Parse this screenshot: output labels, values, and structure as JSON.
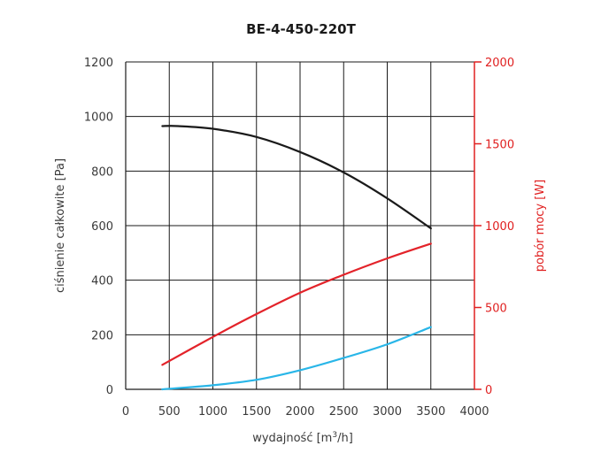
{
  "chart_data": {
    "type": "line",
    "title": "BE-4-450-220T",
    "xlabel": {
      "prefix": "wydajność [m",
      "sup": "3",
      "suffix": "/h]"
    },
    "ylabel": "ciśnienie całkowite [Pa]",
    "y2label": "pobór mocy [W]",
    "xlim": [
      0,
      4000
    ],
    "ylim": [
      0,
      1200
    ],
    "y2lim": [
      0,
      2000
    ],
    "xticks": [
      "0",
      "500",
      "1000",
      "1500",
      "2000",
      "2500",
      "3000",
      "3500",
      "4000"
    ],
    "xtick_values": [
      0,
      500,
      1000,
      1500,
      2000,
      2500,
      3000,
      3500,
      4000
    ],
    "yticks": [
      "0",
      "200",
      "400",
      "600",
      "800",
      "1000",
      "1200"
    ],
    "ytick_values": [
      0,
      200,
      400,
      600,
      800,
      1000,
      1200
    ],
    "y2ticks": [
      "0",
      "500",
      "1000",
      "1500",
      "2000"
    ],
    "y2tick_values": [
      0,
      500,
      1000,
      1500,
      2000
    ],
    "grid": true,
    "colors": {
      "pressure": "#1a1a1a",
      "power": "#e3232a",
      "third": "#29b6e8",
      "right_axis": "#e02020"
    },
    "series": [
      {
        "axis": "left",
        "color": "#1a1a1a",
        "x": [
          420,
          600,
          1000,
          1500,
          2000,
          2500,
          3000,
          3500
        ],
        "y": [
          965,
          965,
          955,
          925,
          870,
          795,
          700,
          590
        ]
      },
      {
        "axis": "right",
        "color": "#e3232a",
        "x": [
          420,
          1000,
          1500,
          2000,
          2500,
          3000,
          3500
        ],
        "y": [
          150,
          320,
          460,
          590,
          700,
          800,
          890
        ]
      },
      {
        "axis": "left",
        "color": "#29b6e8",
        "x": [
          420,
          1000,
          1500,
          2000,
          2500,
          3000,
          3500
        ],
        "y": [
          0,
          15,
          35,
          70,
          115,
          165,
          228
        ]
      }
    ]
  }
}
